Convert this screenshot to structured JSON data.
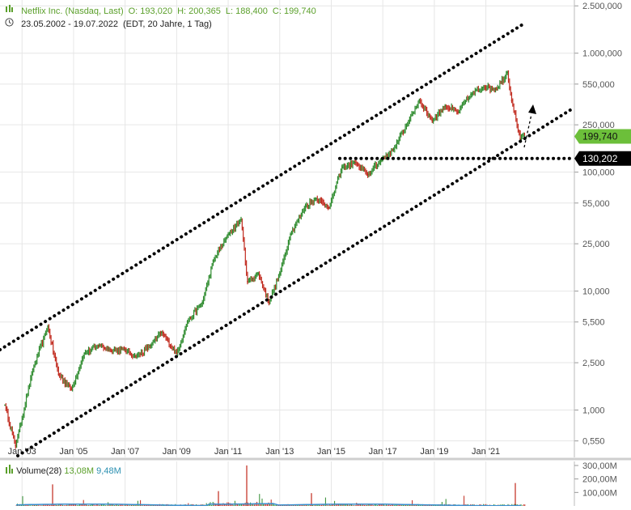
{
  "header": {
    "instrument": "Netflix Inc. (Nasdaq, Last)",
    "open": "O: 193,020",
    "high": "H: 200,365",
    "low": "L: 188,400",
    "close": "C: 199,740",
    "range": "23.05.2002 - 19.07.2022",
    "range_info": "(EDT, 20 Jahre, 1 Tag)"
  },
  "volume_legend": {
    "label": "Volume(28)",
    "value1": "13,08M",
    "value2": "9,48M"
  },
  "colors": {
    "up": "#2e8b2e",
    "down": "#c0281c",
    "last_price_badge": "#6cbf3a",
    "level_badge": "#000000",
    "volume_ma": "#3a8fd0"
  },
  "chart_data": {
    "type": "line",
    "scale": "log",
    "series_label": "Netflix Inc. (Nasdaq, Last)",
    "x": [
      "2002-05",
      "2002-10",
      "2003-06",
      "2004-01",
      "2004-06",
      "2004-12",
      "2005-06",
      "2006-01",
      "2006-06",
      "2007-01",
      "2007-06",
      "2008-01",
      "2008-06",
      "2009-01",
      "2009-06",
      "2010-01",
      "2010-06",
      "2011-01",
      "2011-07",
      "2011-10",
      "2012-03",
      "2012-08",
      "2013-01",
      "2013-06",
      "2014-01",
      "2014-06",
      "2014-12",
      "2015-06",
      "2015-12",
      "2016-06",
      "2016-12",
      "2017-06",
      "2018-01",
      "2018-06",
      "2018-12",
      "2019-06",
      "2019-12",
      "2020-06",
      "2020-12",
      "2021-06",
      "2021-11",
      "2022-01",
      "2022-05",
      "2022-07"
    ],
    "y": [
      1.1,
      0.5,
      2.2,
      5.0,
      2.0,
      1.5,
      3.0,
      3.5,
      3.2,
      3.2,
      2.8,
      3.5,
      4.5,
      3.0,
      5.5,
      8.0,
      18.0,
      30.0,
      40.0,
      12.0,
      14.0,
      8.0,
      14.0,
      30.0,
      52.0,
      60.0,
      50.0,
      110.0,
      120.0,
      95.0,
      125.0,
      155.0,
      270.0,
      400.0,
      270.0,
      360.0,
      320.0,
      450.0,
      520.0,
      500.0,
      690.0,
      400.0,
      190.0,
      199.74
    ],
    "y_ticks": [
      "0,550",
      "1,000",
      "2,500",
      "5,500",
      "10,000",
      "25,000",
      "55,000",
      "100,000",
      "250,000",
      "550,000",
      "1.000,000",
      "2.500,000"
    ],
    "x_ticks": [
      "Jan '03",
      "Jan '05",
      "Jan '07",
      "Jan '09",
      "Jan '11",
      "Jan '13",
      "Jan '15",
      "Jan '17",
      "Jan '19",
      "Jan '21"
    ],
    "ylim": [
      0.4,
      2800
    ],
    "last_price": "199,740",
    "horizontal_level": "130,202",
    "horizontal_level_value": 130.202,
    "volume": {
      "label": "Volume(28)",
      "y_ticks": [
        "100,00M",
        "200,00M",
        "300,00M"
      ],
      "ylim": [
        0,
        330
      ]
    }
  }
}
